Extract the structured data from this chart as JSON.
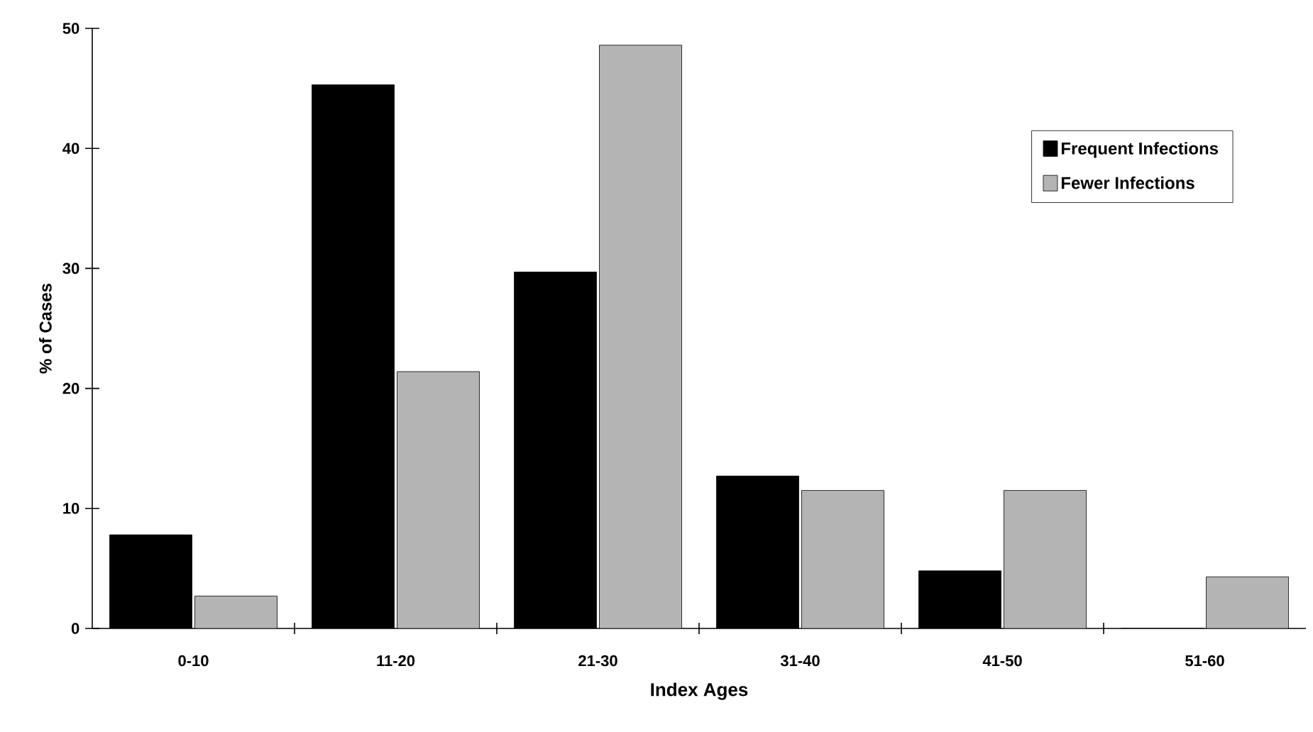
{
  "chart_data": {
    "type": "bar",
    "xlabel": "Index Ages",
    "ylabel": "% of Cases",
    "categories": [
      "0-10",
      "11-20",
      "21-30",
      "31-40",
      "41-50",
      "51-60"
    ],
    "series": [
      {
        "name": "Frequent Infections",
        "color": "#000000",
        "values": [
          7.8,
          45.3,
          29.7,
          12.7,
          4.8,
          0
        ]
      },
      {
        "name": "Fewer Infections",
        "color": "#b4b4b4",
        "values": [
          2.7,
          21.4,
          48.6,
          11.5,
          11.5,
          4.3
        ]
      }
    ],
    "ylim": [
      0,
      50
    ],
    "yticks": [
      0,
      10,
      20,
      30,
      40,
      50
    ],
    "grid": false,
    "legend": "top right"
  }
}
